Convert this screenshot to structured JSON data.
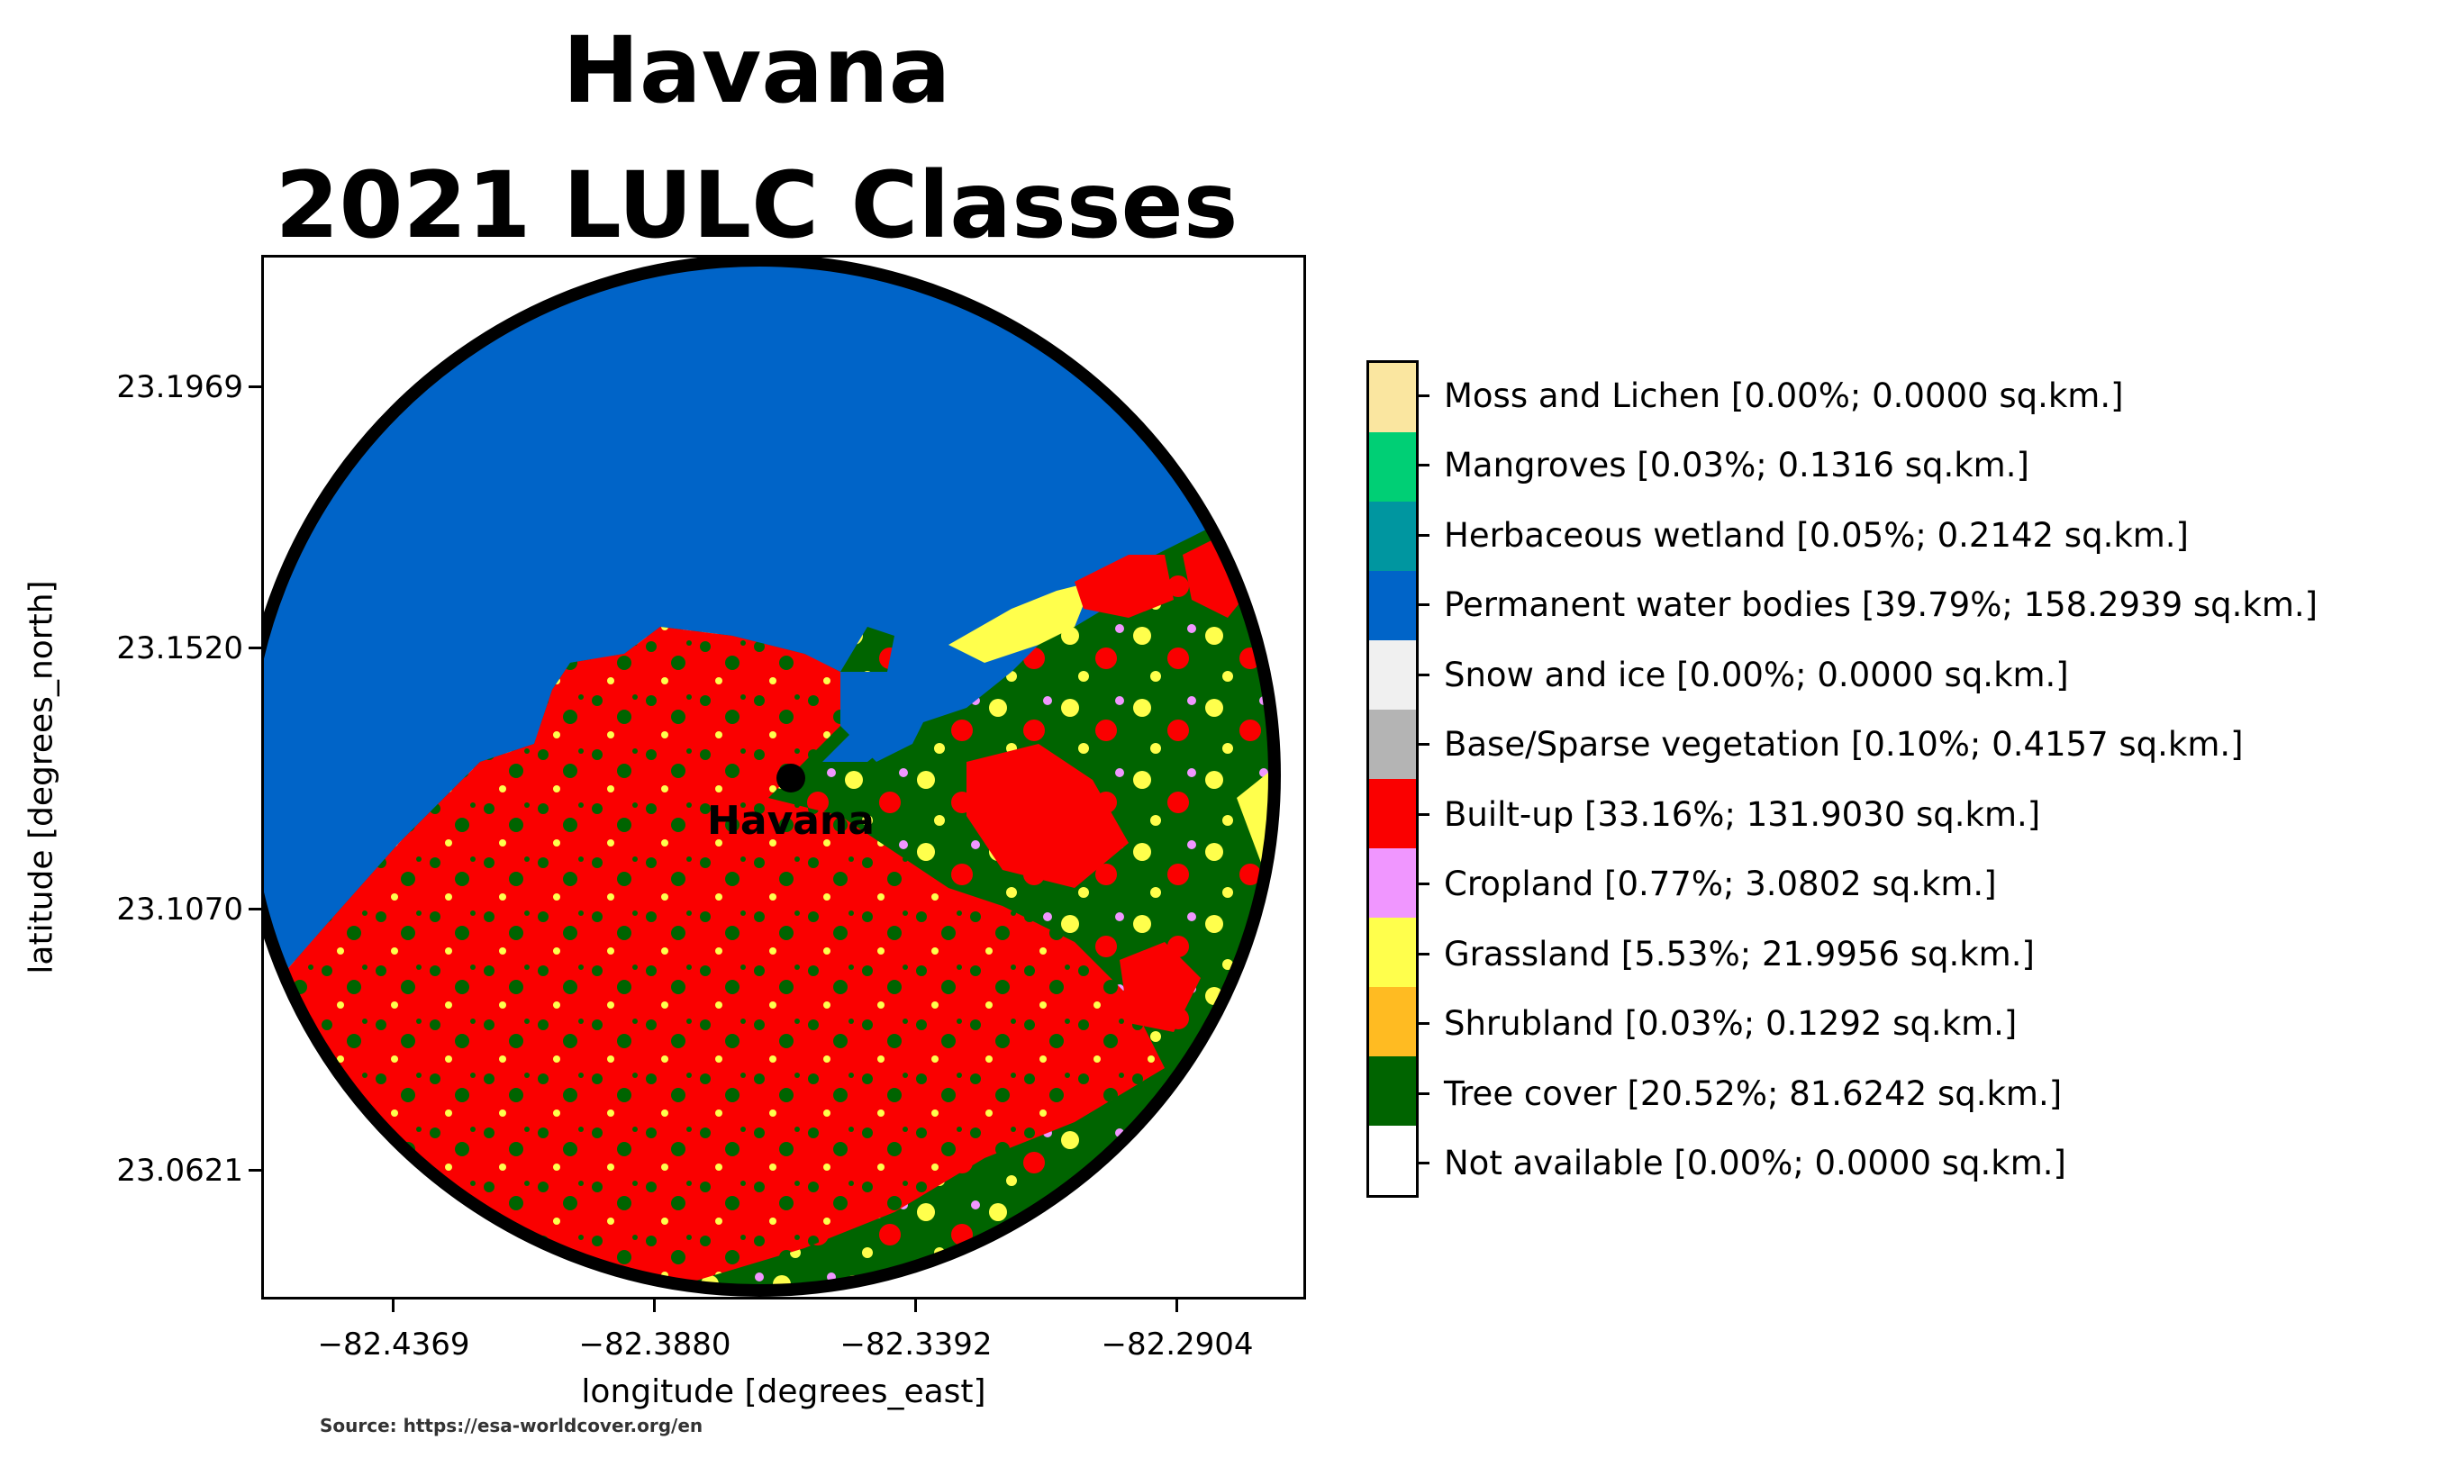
{
  "title": {
    "line1": "Havana",
    "line2": "2021 LULC Classes"
  },
  "axes": {
    "xlabel": "longitude [degrees_east]",
    "ylabel": "latitude [degrees_north]",
    "xticks": [
      "−82.4369",
      "−82.3880",
      "−82.3392",
      "−82.2904"
    ],
    "yticks": [
      "23.1969",
      "23.1520",
      "23.1070",
      "23.0621"
    ]
  },
  "marker": {
    "label": "Havana"
  },
  "source": "Source: https://esa-worldcover.org/en",
  "legend": {
    "items": [
      {
        "label": "Moss and Lichen [0.00%; 0.0000 sq.km.]",
        "color": "#fae6a0"
      },
      {
        "label": "Mangroves [0.03%; 0.1316 sq.km.]",
        "color": "#00cf75"
      },
      {
        "label": "Herbaceous wetland [0.05%; 0.2142 sq.km.]",
        "color": "#0096a0"
      },
      {
        "label": "Permanent water bodies [39.79%; 158.2939 sq.km.]",
        "color": "#0064c8"
      },
      {
        "label": "Snow and ice [0.00%; 0.0000 sq.km.]",
        "color": "#f0f0f0"
      },
      {
        "label": "Base/Sparse vegetation [0.10%; 0.4157 sq.km.]",
        "color": "#b4b4b4"
      },
      {
        "label": "Built-up [33.16%; 131.9030 sq.km.]",
        "color": "#fa0000"
      },
      {
        "label": "Cropland [0.77%; 3.0802 sq.km.]",
        "color": "#f096ff"
      },
      {
        "label": "Grassland [5.53%; 21.9956 sq.km.]",
        "color": "#ffff4c"
      },
      {
        "label": "Shrubland [0.03%; 0.1292 sq.km.]",
        "color": "#ffbb22"
      },
      {
        "label": "Tree cover [20.52%; 81.6242 sq.km.]",
        "color": "#006400"
      },
      {
        "label": "Not available [0.00%; 0.0000 sq.km.]",
        "color": "#ffffff"
      }
    ]
  }
}
